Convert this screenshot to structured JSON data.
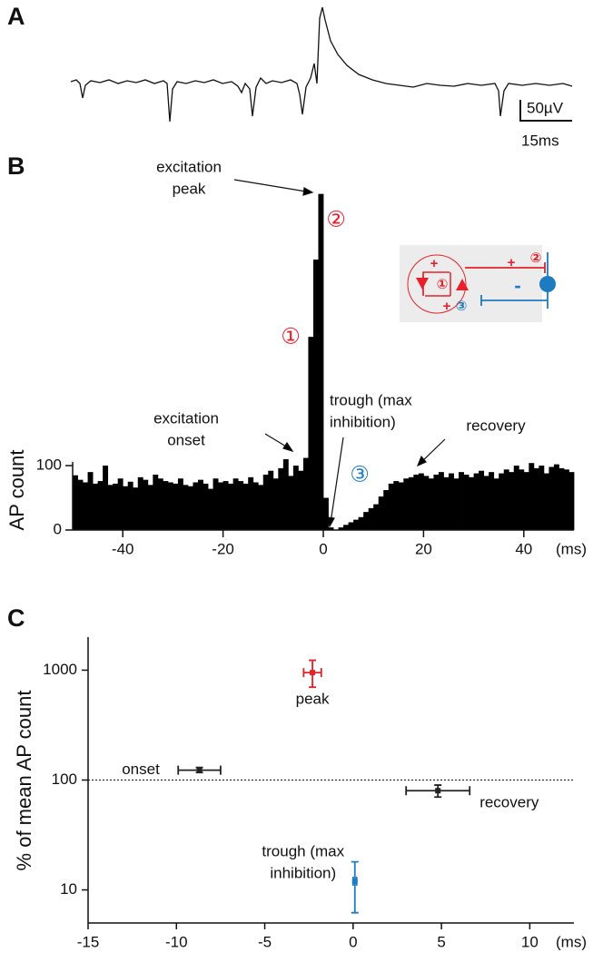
{
  "trace": {
    "panel_label": "A",
    "scale_y_label": "50µV",
    "scale_x_label": "15ms"
  },
  "chart_data": [
    {
      "type": "histogram",
      "panel_label": "B",
      "y_label": "AP count",
      "x_unit": "(ms)",
      "color": "#000000",
      "bins": [
        -50,
        -49,
        -48,
        -47,
        -46,
        -45,
        -44,
        -43,
        -42,
        -41,
        -40,
        -39,
        -38,
        -37,
        -36,
        -35,
        -34,
        -33,
        -32,
        -31,
        -30,
        -29,
        -28,
        -27,
        -26,
        -25,
        -24,
        -23,
        -22,
        -21,
        -20,
        -19,
        -18,
        -17,
        -16,
        -15,
        -14,
        -13,
        -12,
        -11,
        -10,
        -9,
        -8,
        -7,
        -6,
        -5,
        -4,
        -3,
        -2,
        -1,
        0,
        1,
        2,
        3,
        4,
        5,
        6,
        7,
        8,
        9,
        10,
        11,
        12,
        13,
        14,
        15,
        16,
        17,
        18,
        19,
        20,
        21,
        22,
        23,
        24,
        25,
        26,
        27,
        28,
        29,
        30,
        31,
        32,
        33,
        34,
        35,
        36,
        37,
        38,
        39,
        40,
        41,
        42,
        43,
        44,
        45,
        46,
        47,
        48,
        49,
        50
      ],
      "values": [
        85,
        78,
        74,
        90,
        72,
        76,
        100,
        70,
        72,
        80,
        68,
        75,
        66,
        82,
        78,
        70,
        86,
        80,
        76,
        74,
        72,
        80,
        70,
        68,
        74,
        78,
        72,
        64,
        80,
        74,
        76,
        72,
        80,
        76,
        72,
        82,
        74,
        70,
        86,
        92,
        80,
        96,
        110,
        84,
        100,
        92,
        112,
        300,
        420,
        522,
        50,
        4,
        0,
        4,
        8,
        12,
        16,
        20,
        28,
        34,
        40,
        52,
        62,
        72,
        76,
        74,
        80,
        82,
        86,
        88,
        84,
        80,
        86,
        90,
        82,
        88,
        80,
        90,
        86,
        82,
        88,
        92,
        84,
        90,
        80,
        88,
        94,
        90,
        100,
        94,
        90,
        104,
        96,
        100,
        88,
        98,
        102,
        96,
        94,
        90
      ],
      "xlim": [
        -50,
        50
      ],
      "xticks": [
        -40,
        -20,
        0,
        20,
        40
      ],
      "ylim": [
        0,
        530
      ],
      "yticks": [
        0,
        100
      ],
      "annotations": [
        {
          "lines": [
            "excitation",
            "peak"
          ]
        },
        {
          "lines": [
            "excitation",
            "onset"
          ]
        },
        {
          "lines": [
            "trough (max",
            "inhibition)"
          ]
        },
        {
          "lines": [
            "recovery"
          ]
        }
      ],
      "markers": [
        {
          "text": "①",
          "color": "#e8202a"
        },
        {
          "text": "②",
          "color": "#e8202a"
        },
        {
          "text": "③",
          "color": "#1f7bc0"
        }
      ],
      "inset": [
        {
          "text": "+",
          "color": "#e8202a"
        },
        {
          "text": "+",
          "color": "#e8202a"
        },
        {
          "text": "+",
          "color": "#e8202a"
        },
        {
          "text": "-",
          "color": "#1f7bc0"
        },
        {
          "text": "①",
          "color": "#e8202a"
        },
        {
          "text": "②",
          "color": "#e8202a"
        },
        {
          "text": "③",
          "color": "#1f7bc0"
        }
      ]
    },
    {
      "type": "scatter",
      "panel_label": "C",
      "y_label": "% of mean AP count",
      "x_unit": "(ms)",
      "log_y": true,
      "xlim": [
        -15,
        12.5
      ],
      "xticks": [
        -15,
        -10,
        -5,
        0,
        5,
        10
      ],
      "ylim": [
        5,
        2000
      ],
      "yticks": [
        10,
        100,
        1000
      ],
      "ref_line": 100,
      "points": [
        {
          "lines": [
            "peak"
          ],
          "color": "#e8202a",
          "x": -2.3,
          "x_err": 0.5,
          "y": 950,
          "y_low": 700,
          "y_high": 1230
        },
        {
          "lines": [
            "onset"
          ],
          "color": "#222222",
          "x": -8.7,
          "x_err": 1.2,
          "y": 123,
          "y_low": 117,
          "y_high": 130
        },
        {
          "lines": [
            "recovery"
          ],
          "color": "#222222",
          "x": 4.8,
          "x_err": 1.8,
          "y": 80,
          "y_low": 70,
          "y_high": 90
        },
        {
          "lines": [
            "trough (max",
            "inhibition)"
          ],
          "color": "#1f7bc0",
          "x": 0.1,
          "x_err": 0.1,
          "y": 12,
          "y_low": 6.2,
          "y_high": 18
        }
      ]
    }
  ]
}
